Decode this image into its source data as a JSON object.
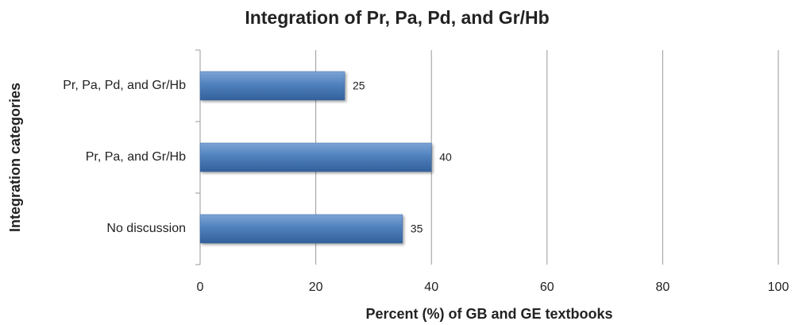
{
  "chart_data": {
    "type": "bar",
    "orientation": "horizontal",
    "title": "Integration of Pr, Pa, Pd, and Gr/Hb",
    "x_label": "Percent (%) of GB and GE textbooks",
    "y_label": "Integration categories",
    "categories": [
      "Pr, Pa, Pd, and Gr/Hb",
      "Pr, Pa, and Gr/Hb",
      "No discussion"
    ],
    "values": [
      25,
      40,
      35
    ],
    "color": "#4f81bd",
    "xlim": [
      0,
      100
    ],
    "xticks": [
      0,
      20,
      40,
      60,
      80,
      100
    ],
    "grid": true
  }
}
